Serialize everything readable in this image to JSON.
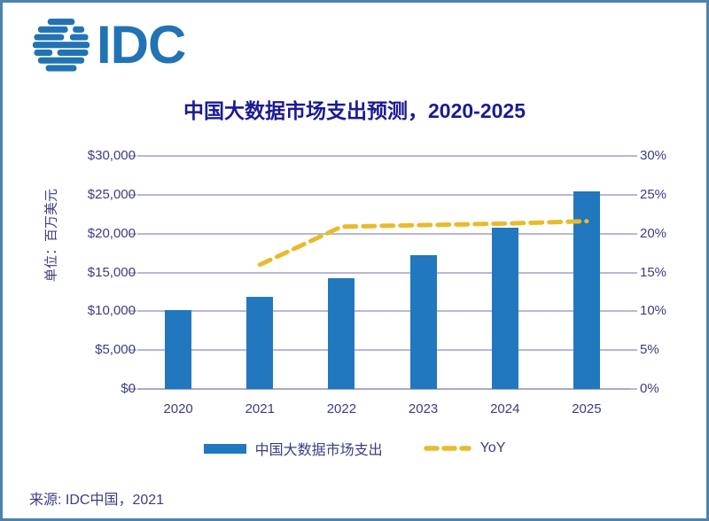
{
  "logo": {
    "text": "IDC"
  },
  "source": "来源: IDC中国，2021",
  "chart_data": {
    "type": "bar",
    "title": "中国大数据市场支出预测，2020-2025",
    "categories": [
      "2020",
      "2021",
      "2022",
      "2023",
      "2024",
      "2025"
    ],
    "series": [
      {
        "name": "中国大数据市场支出",
        "type": "bar",
        "axis": "left",
        "color": "#2178BE",
        "values": [
          10100,
          11900,
          14300,
          17200,
          20800,
          25450
        ]
      },
      {
        "name": "YoY",
        "type": "line",
        "style": "dashed",
        "axis": "right",
        "color": "#E8BA2D",
        "categories": [
          "2021",
          "2022",
          "2023",
          "2024",
          "2025"
        ],
        "values": [
          16,
          20.9,
          21.1,
          21.3,
          21.6
        ]
      }
    ],
    "left_axis": {
      "unit_label": "单位：百万美元",
      "min": 0,
      "max": 30000,
      "step": 5000,
      "tick_labels": [
        "$0",
        "$5,000",
        "$10,000",
        "$15,000",
        "$20,000",
        "$25,000",
        "$30,000"
      ]
    },
    "right_axis": {
      "min": 0,
      "max": 30,
      "step": 5,
      "tick_labels": [
        "0%",
        "5%",
        "10%",
        "15%",
        "20%",
        "25%",
        "30%"
      ]
    },
    "grid": true,
    "legend_position": "bottom"
  },
  "colors": {
    "bar": "#2178BE",
    "line": "#E8BA2D",
    "grid": "#B7B7D9",
    "axis_text": "#3C3C82",
    "title": "#1A1A96",
    "border": "#4B82AD",
    "logo": "#2173B4"
  }
}
